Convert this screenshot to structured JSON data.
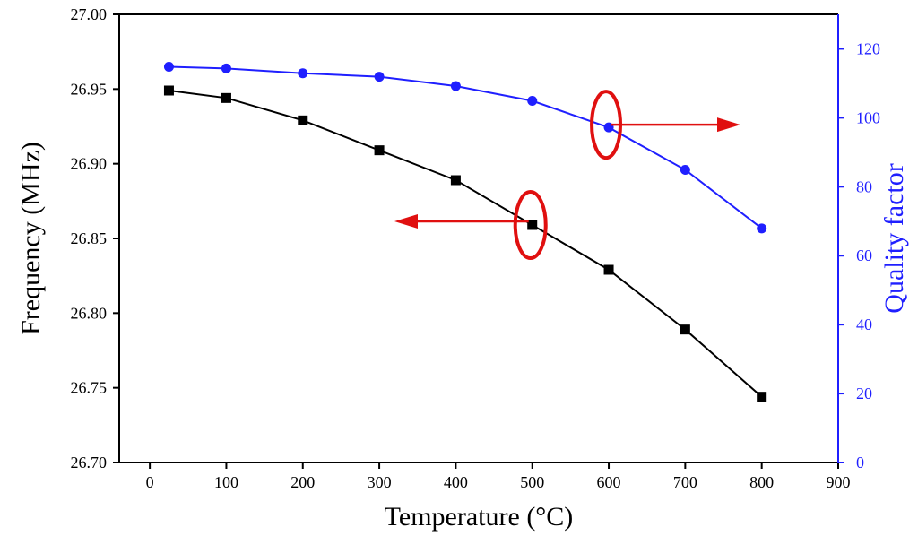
{
  "chart_data": {
    "type": "line",
    "title": "",
    "xlabel": "Temperature (°C)",
    "ylabel": "Frequency (MHz)",
    "y2label": "Quality factor",
    "xlim": [
      -40,
      900
    ],
    "ylim": [
      26.7,
      27.0
    ],
    "y2lim": [
      0,
      130
    ],
    "x_ticks": [
      "0",
      "100",
      "200",
      "300",
      "400",
      "500",
      "600",
      "700",
      "800",
      "900"
    ],
    "y_ticks": [
      "26.70",
      "26.75",
      "26.80",
      "26.85",
      "26.90",
      "26.95",
      "27.00"
    ],
    "y2_ticks": [
      "0",
      "20",
      "40",
      "60",
      "80",
      "100",
      "120"
    ],
    "series": [
      {
        "name": "Frequency",
        "axis": "left",
        "color": "#000000",
        "marker": "square",
        "x": [
          25,
          100,
          200,
          300,
          400,
          500,
          600,
          700,
          800
        ],
        "values": [
          26.949,
          26.944,
          26.929,
          26.909,
          26.889,
          26.859,
          26.829,
          26.789,
          26.744
        ]
      },
      {
        "name": "Quality factor",
        "axis": "right",
        "color": "#1f1fff",
        "marker": "circle",
        "x": [
          25,
          100,
          200,
          300,
          400,
          500,
          600,
          700,
          800
        ],
        "values": [
          114.8,
          114.3,
          112.9,
          111.9,
          109.2,
          104.9,
          97.2,
          84.9,
          67.9
        ]
      }
    ],
    "annotations": [
      {
        "type": "ellipse-arrow",
        "target_series": "Frequency",
        "x": 500,
        "y": 26.859,
        "direction": "left",
        "color": "#e01010"
      },
      {
        "type": "ellipse-arrow",
        "target_series": "Quality factor",
        "x": 600,
        "y": 97.2,
        "direction": "right",
        "color": "#e01010"
      }
    ]
  }
}
